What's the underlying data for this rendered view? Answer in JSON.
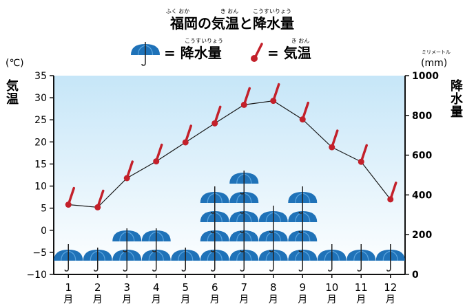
{
  "title": {
    "text": "福岡の気温と降水量",
    "ruby": [
      "ふく おか",
      "き おん",
      "こうすいりょう"
    ]
  },
  "legend": {
    "precip": {
      "label": "= 降水量",
      "ruby": "こうすいりょう"
    },
    "temp": {
      "label": "= 気温",
      "ruby": "き おん"
    }
  },
  "axes": {
    "left_unit": "(℃)",
    "left_label": [
      "気",
      "温"
    ],
    "right_unit": "(mm)",
    "right_unit_ruby": "ミリメートル",
    "right_label": [
      "降",
      "水",
      "量"
    ],
    "x_suffix": "月"
  },
  "chart_data": {
    "type": "line",
    "categories": [
      "1",
      "2",
      "3",
      "4",
      "5",
      "6",
      "7",
      "8",
      "9",
      "10",
      "11",
      "12"
    ],
    "series": [
      {
        "name": "気温",
        "axis": "left",
        "unit": "℃",
        "values": [
          5.8,
          5.2,
          11.8,
          15.6,
          19.9,
          24.2,
          28.4,
          29.3,
          25.1,
          18.8,
          15.5,
          7.0
        ]
      },
      {
        "name": "降水量",
        "axis": "right",
        "unit": "mm",
        "values": [
          74,
          70,
          104,
          116,
          69,
          248,
          264,
          195,
          223,
          81,
          90,
          73
        ]
      }
    ],
    "ylim_left": [
      -10,
      35
    ],
    "yticks_left": [
      35,
      30,
      25,
      20,
      15,
      10,
      5,
      0,
      -5,
      -10
    ],
    "ytick_labels_left": [
      "35",
      "30",
      "25",
      "20",
      "15",
      "10",
      "5",
      "0",
      "−5",
      "−10"
    ],
    "ylim_right": [
      0,
      1000
    ],
    "yticks_right": [
      1000,
      800,
      600,
      400,
      200,
      0
    ],
    "ytick_labels_right": [
      "1000",
      "800",
      "600",
      "400",
      "200",
      "0"
    ],
    "grid": false,
    "legend_position": "top"
  },
  "colors": {
    "plot_top": "#c6e6f8",
    "plot_bottom": "#ffffff",
    "thermo": "#c3202a",
    "umbrella": "#1f72b8",
    "umbrella_light": "#5aa4de",
    "line": "#1a1a1a"
  }
}
